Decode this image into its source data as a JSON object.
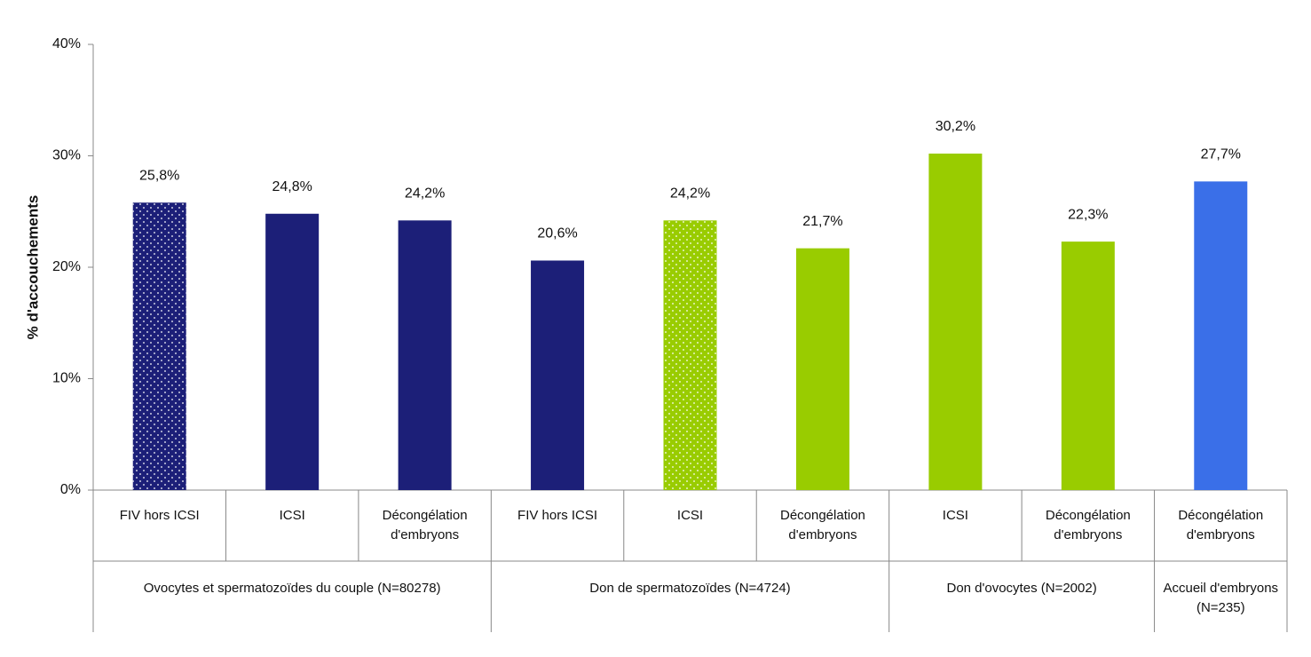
{
  "chart_data": {
    "type": "bar",
    "y_label": "% d'accouchements",
    "ylim": [
      0,
      40
    ],
    "yticks": [
      {
        "value": 0,
        "label": "0%"
      },
      {
        "value": 10,
        "label": "10%"
      },
      {
        "value": 20,
        "label": "20%"
      },
      {
        "value": 30,
        "label": "30%"
      },
      {
        "value": 40,
        "label": "40%"
      }
    ],
    "groups": [
      {
        "name": "Ovocytes et spermatozoïdes du couple (N=80278)",
        "categories": [
          "FIV hors ICSI",
          "ICSI",
          "Décongélation d'embryons"
        ],
        "values": [
          25.8,
          24.8,
          24.2
        ],
        "value_labels": [
          "25,8%",
          "24,8%",
          "24,2%"
        ],
        "colors": [
          "#1c1f78",
          "#1c1f78",
          "#1c1f78"
        ],
        "dotted": [
          true,
          false,
          false
        ]
      },
      {
        "name": "Don de spermatozoïdes (N=4724)",
        "categories": [
          "FIV hors ICSI",
          "ICSI",
          "Décongélation d'embryons"
        ],
        "values": [
          20.6,
          24.2,
          21.7
        ],
        "value_labels": [
          "20,6%",
          "24,2%",
          "21,7%"
        ],
        "colors": [
          "#1c1f78",
          "#99cc00",
          "#99cc00"
        ],
        "dotted": [
          false,
          true,
          false
        ]
      },
      {
        "name": "Don d'ovocytes (N=2002)",
        "categories": [
          "ICSI",
          "Décongélation d'embryons"
        ],
        "values": [
          30.2,
          22.3
        ],
        "value_labels": [
          "30,2%",
          "22,3%"
        ],
        "colors": [
          "#99cc00",
          "#99cc00"
        ],
        "dotted": [
          false,
          false
        ]
      },
      {
        "name": "Accueil d'embryons (N=235)",
        "categories": [
          "Décongélation d'embryons"
        ],
        "values": [
          27.7
        ],
        "value_labels": [
          "27,7%"
        ],
        "colors": [
          "#3a6fe8"
        ],
        "dotted": [
          false
        ]
      }
    ]
  }
}
